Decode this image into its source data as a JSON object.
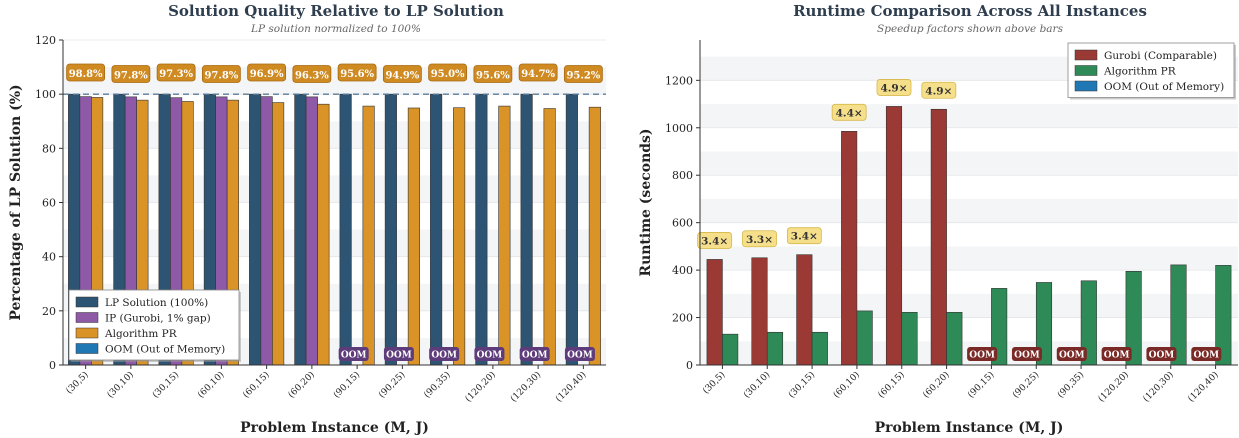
{
  "chart_data": [
    {
      "type": "bar",
      "title": "Solution Quality Relative to LP Solution",
      "subtitle": "LP solution normalized to 100%",
      "xlabel": "Problem Instance (M, J)",
      "ylabel": "Percentage of LP Solution (%)",
      "ylim": [
        0,
        120
      ],
      "yticks": [
        "0",
        "20",
        "40",
        "60",
        "80",
        "100",
        "120"
      ],
      "categories": [
        "(30,5)",
        "(30,10)",
        "(30,15)",
        "(60,10)",
        "(60,15)",
        "(60,20)",
        "(90,15)",
        "(90,25)",
        "(90,35)",
        "(120,20)",
        "(120,30)",
        "(120,40)"
      ],
      "series": [
        {
          "name": "LP Solution (100%)",
          "color": "#2e5473",
          "values": [
            100,
            100,
            100,
            100,
            100,
            100,
            100,
            100,
            100,
            100,
            100,
            100
          ]
        },
        {
          "name": "IP (Gurobi, 1% gap)",
          "color": "#8e5aa8",
          "values": [
            99.1,
            99.0,
            98.7,
            99.0,
            99.1,
            99.0,
            null,
            null,
            null,
            null,
            null,
            null
          ]
        },
        {
          "name": "Algorithm PR",
          "color": "#d99327",
          "values": [
            98.8,
            97.8,
            97.3,
            97.8,
            96.9,
            96.3,
            95.6,
            94.9,
            95.0,
            95.6,
            94.7,
            95.2
          ]
        }
      ],
      "legend_oom": "OOM (Out of Memory)",
      "oom_label": "OOM",
      "value_labels": [
        "98.8%",
        "97.8%",
        "97.3%",
        "97.8%",
        "96.9%",
        "96.3%",
        "95.6%",
        "94.9%",
        "95.0%",
        "95.6%",
        "94.7%",
        "95.2%"
      ],
      "reference_line": 100,
      "legend_position": "bottom-left",
      "grid": true
    },
    {
      "type": "bar",
      "title": "Runtime Comparison Across All Instances",
      "subtitle": "Speedup factors shown above bars",
      "xlabel": "Problem Instance (M, J)",
      "ylabel": "Runtime (seconds)",
      "ylim": [
        0,
        1370
      ],
      "yticks": [
        "0",
        "200",
        "400",
        "600",
        "800",
        "1000",
        "1200"
      ],
      "categories": [
        "(30,5)",
        "(30,10)",
        "(30,15)",
        "(60,10)",
        "(60,15)",
        "(60,20)",
        "(90,15)",
        "(90,25)",
        "(90,35)",
        "(120,20)",
        "(120,30)",
        "(120,40)"
      ],
      "series": [
        {
          "name": "Gurobi (Comparable)",
          "color": "#9b3a35",
          "values": [
            445,
            452,
            465,
            985,
            1090,
            1078,
            null,
            null,
            null,
            null,
            null,
            null
          ]
        },
        {
          "name": "Algorithm PR",
          "color": "#2e8a57",
          "values": [
            130,
            138,
            138,
            228,
            222,
            222,
            323,
            348,
            355,
            395,
            422,
            420
          ]
        }
      ],
      "legend_oom": "OOM (Out of Memory)",
      "oom_label": "OOM",
      "speedup_labels": [
        "3.4×",
        "3.3×",
        "3.4×",
        "4.4×",
        "4.9×",
        "4.9×"
      ],
      "legend_position": "top-right",
      "grid": true
    }
  ]
}
